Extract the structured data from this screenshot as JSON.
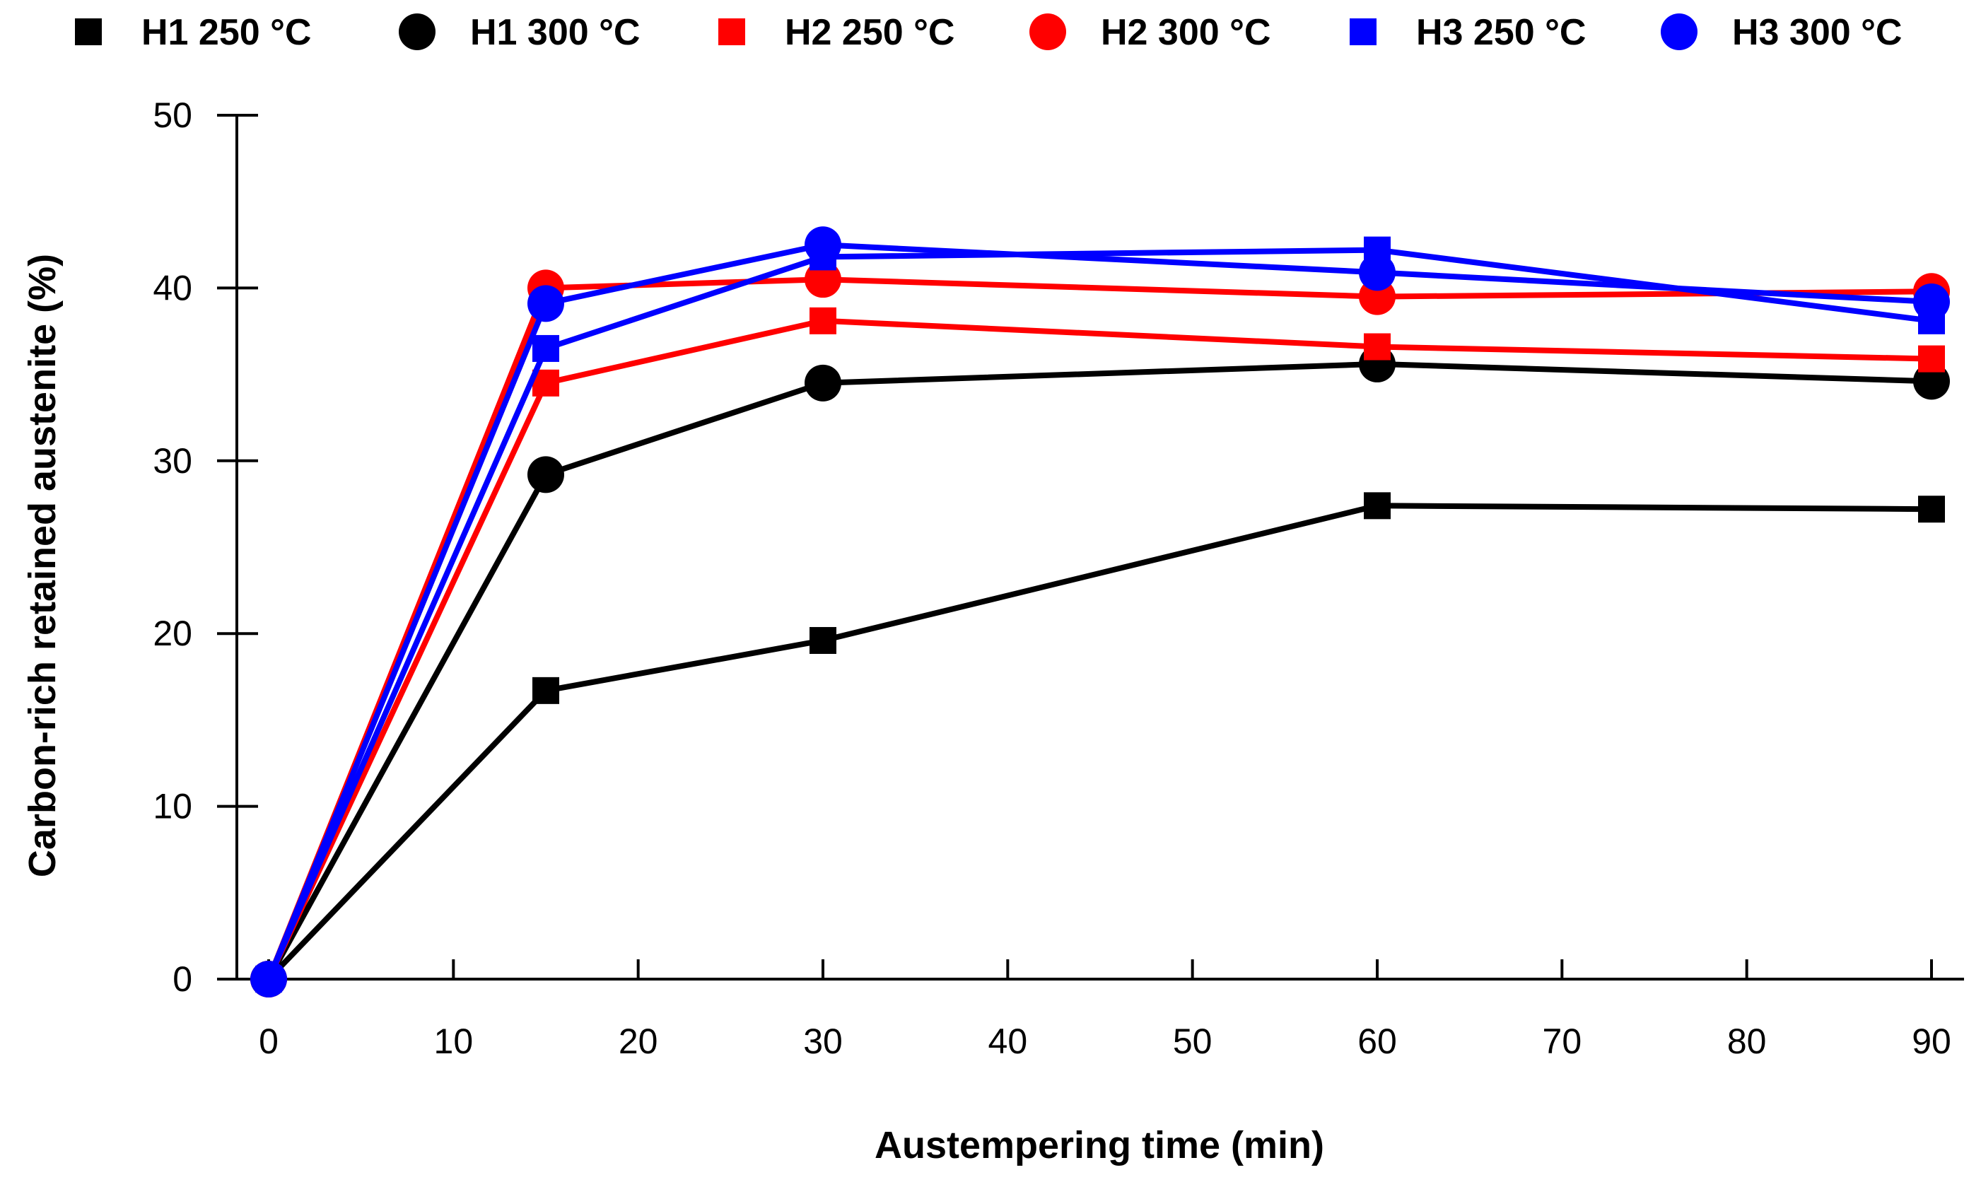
{
  "chart_data": {
    "type": "line",
    "title": "",
    "xlabel": "Austempering time (min)",
    "ylabel": "Carbon-rich retained austenite (%)",
    "xlim": [
      -2,
      92
    ],
    "ylim": [
      0,
      50
    ],
    "xticks": [
      0,
      10,
      20,
      30,
      40,
      50,
      60,
      70,
      80,
      90
    ],
    "yticks": [
      0,
      10,
      20,
      30,
      40,
      50
    ],
    "grid": false,
    "legend_position": "top",
    "x": [
      0,
      15,
      30,
      60,
      90
    ],
    "series": [
      {
        "name": "H1 250 °C",
        "marker": "square",
        "color": "#000000",
        "values": [
          0,
          16.7,
          19.6,
          27.4,
          27.2
        ]
      },
      {
        "name": "H1 300 °C",
        "marker": "circle",
        "color": "#000000",
        "values": [
          0,
          29.2,
          34.5,
          35.6,
          34.6
        ]
      },
      {
        "name": "H2 250 °C",
        "marker": "square",
        "color": "#ff0000",
        "values": [
          0,
          34.5,
          38.1,
          36.6,
          35.9
        ]
      },
      {
        "name": "H2 300 °C",
        "marker": "circle",
        "color": "#ff0000",
        "values": [
          0,
          40.0,
          40.5,
          39.5,
          39.8
        ]
      },
      {
        "name": "H3 250 °C",
        "marker": "square",
        "color": "#0000ff",
        "values": [
          0,
          36.5,
          41.8,
          42.2,
          38.1
        ]
      },
      {
        "name": "H3 300 °C",
        "marker": "circle",
        "color": "#0000ff",
        "values": [
          0,
          39.1,
          42.5,
          40.9,
          39.2
        ]
      }
    ]
  }
}
